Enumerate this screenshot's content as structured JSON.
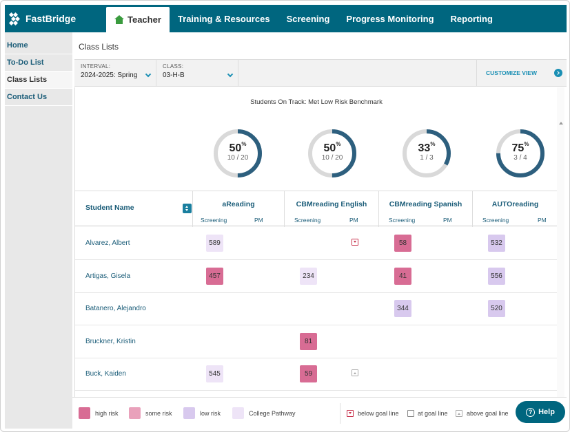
{
  "header": {
    "logo_text": "FastBridge",
    "nav": [
      {
        "label": "Teacher",
        "active": true
      },
      {
        "label": "Training & Resources"
      },
      {
        "label": "Screening"
      },
      {
        "label": "Progress Monitoring"
      },
      {
        "label": "Reporting"
      }
    ]
  },
  "sidebar": {
    "items": [
      {
        "label": "Home"
      },
      {
        "label": "To-Do List"
      },
      {
        "label": "Class Lists",
        "active": true
      },
      {
        "label": "Contact Us"
      }
    ]
  },
  "page": {
    "title": "Class Lists",
    "interval_label": "INTERVAL:",
    "interval_value": "2024-2025: Spring",
    "class_label": "CLASS:",
    "class_value": "03-H-B",
    "customize_label": "CUSTOMIZE VIEW"
  },
  "chart": {
    "title": "Students On Track: Met Low Risk Benchmark",
    "donuts": [
      {
        "pct": "50",
        "pct_sign": "%",
        "frac": "10 / 20",
        "value": 0.5
      },
      {
        "pct": "50",
        "pct_sign": "%",
        "frac": "10 / 20",
        "value": 0.5
      },
      {
        "pct": "33",
        "pct_sign": "%",
        "frac": "1 / 3",
        "value": 0.333
      },
      {
        "pct": "75",
        "pct_sign": "%",
        "frac": "3 / 4",
        "value": 0.75
      }
    ]
  },
  "table": {
    "name_header": "Student Name",
    "groups": [
      {
        "title": "aReading",
        "sub1": "Screening",
        "sub2": "PM"
      },
      {
        "title": "CBMreading English",
        "sub1": "Screening",
        "sub2": "PM"
      },
      {
        "title": "CBMreading Spanish",
        "sub1": "Screening",
        "sub2": "PM"
      },
      {
        "title": "AUTOreading",
        "sub1": "Screening",
        "sub2": "PM"
      }
    ],
    "rows": [
      {
        "name": "Alvarez, Albert",
        "c0": "589",
        "c0_risk": "college",
        "c1": "",
        "c1_risk": "",
        "c1_pm": "below",
        "c2": "58",
        "c2_risk": "high",
        "c3": "532",
        "c3_risk": "low"
      },
      {
        "name": "Artigas, Gisela",
        "c0": "457",
        "c0_risk": "high",
        "c1": "234",
        "c1_risk": "college",
        "c1_pm": "",
        "c2": "41",
        "c2_risk": "high",
        "c3": "556",
        "c3_risk": "low"
      },
      {
        "name": "Batanero, Alejandro",
        "c0": "",
        "c0_risk": "",
        "c1": "",
        "c1_risk": "",
        "c1_pm": "",
        "c2": "344",
        "c2_risk": "low",
        "c3": "520",
        "c3_risk": "low"
      },
      {
        "name": "Bruckner, Kristin",
        "c0": "",
        "c0_risk": "",
        "c1": "81",
        "c1_risk": "high",
        "c1_pm": "",
        "c2": "",
        "c2_risk": "",
        "c3": "",
        "c3_risk": ""
      },
      {
        "name": "Buck, Kaiden",
        "c0": "545",
        "c0_risk": "college",
        "c1": "59",
        "c1_risk": "high",
        "c1_pm": "above",
        "c2": "",
        "c2_risk": "",
        "c3": "",
        "c3_risk": ""
      }
    ]
  },
  "legend": {
    "high": "high risk",
    "some": "some risk",
    "low": "low risk",
    "college": "College Pathway",
    "below": "below goal line",
    "at": "at goal line",
    "above": "above goal line"
  },
  "help_label": "Help",
  "colors": {
    "brand": "#00667f",
    "accent": "#1a8fb4",
    "high": "#d86c94",
    "some": "#e9a1bb",
    "low": "#d8c9ee",
    "college": "#eee4f7"
  }
}
